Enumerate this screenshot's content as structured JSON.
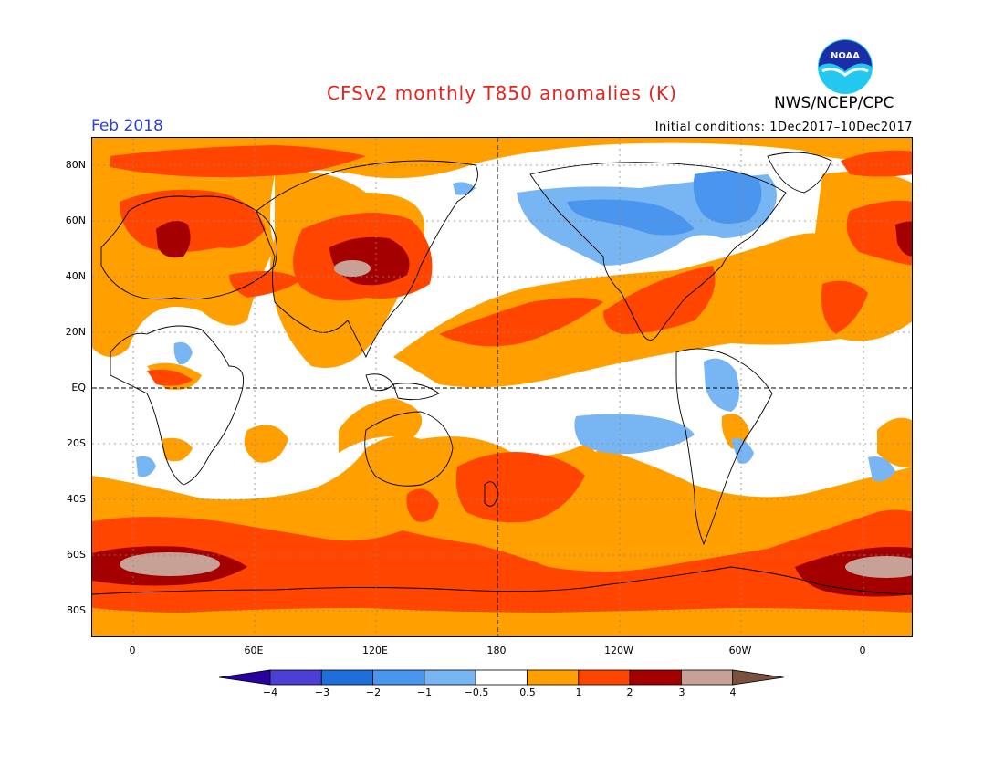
{
  "title": "CFSv2 monthly T850 anomalies (K)",
  "agency": "NWS/NCEP/CPC",
  "logo_text": "NOAA",
  "month_label": "Feb 2018",
  "initial_conditions": "Initial conditions: 1Dec2017–10Dec2017",
  "lat_labels": [
    "80N",
    "60N",
    "40N",
    "20N",
    "EQ",
    "20S",
    "40S",
    "60S",
    "80S"
  ],
  "lon_labels": [
    "0",
    "60E",
    "120E",
    "180",
    "120W",
    "60W",
    "0"
  ],
  "colorbar": {
    "labels": [
      "−4",
      "−3",
      "−2",
      "−1",
      "−0.5",
      "0.5",
      "1",
      "2",
      "3",
      "4"
    ],
    "colors": [
      "#2a00a0",
      "#4b3fd6",
      "#1e6fdc",
      "#4a96ee",
      "#78b6f3",
      "#ffffff",
      "#ffa000",
      "#ff4500",
      "#a50000",
      "#c8a196",
      "#7a5040"
    ]
  },
  "palette": {
    "orange": "#ffa000",
    "red_orange": "#ff4500",
    "dark_red": "#a50000",
    "rosy": "#c8a196",
    "light_blue": "#78b6f3",
    "mid_blue": "#4a96ee"
  }
}
